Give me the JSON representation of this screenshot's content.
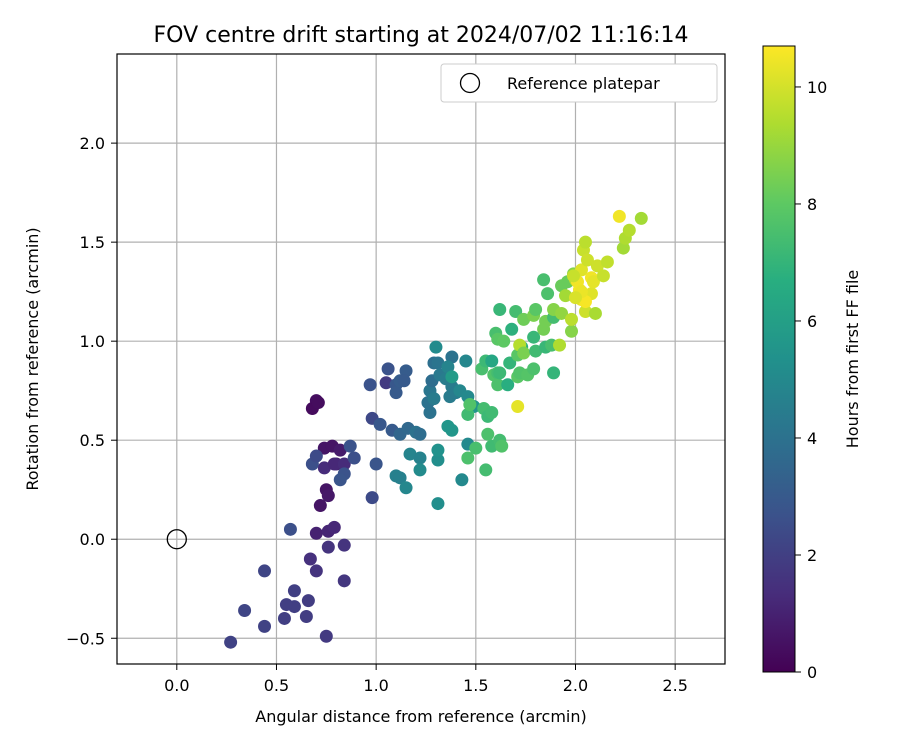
{
  "chart_data": {
    "type": "scatter",
    "title": "FOV centre drift starting at 2024/07/02 11:16:14",
    "xlabel": "Angular distance from reference (arcmin)",
    "ylabel": "Rotation from reference (arcmin)",
    "xlim": [
      -0.3,
      2.75
    ],
    "ylim": [
      -0.63,
      2.45
    ],
    "xticks": [
      0.0,
      0.5,
      1.0,
      1.5,
      2.0,
      2.5
    ],
    "xtick_labels": [
      "0.0",
      "0.5",
      "1.0",
      "1.5",
      "2.0",
      "2.5"
    ],
    "yticks": [
      -0.5,
      0.0,
      0.5,
      1.0,
      1.5,
      2.0
    ],
    "ytick_labels": [
      "−0.5",
      "0.0",
      "0.5",
      "1.0",
      "1.5",
      "2.0"
    ],
    "grid": true,
    "legend": {
      "position": "top-right",
      "entries": [
        "Reference platepar"
      ]
    },
    "reference_point": {
      "x": 0.0,
      "y": 0.0,
      "label": "Reference platepar"
    },
    "colorbar": {
      "label": "Hours from first FF file",
      "colormap": "viridis",
      "range": [
        0,
        10.7
      ],
      "ticks": [
        0,
        2,
        4,
        6,
        8,
        10
      ],
      "tick_labels": [
        "0",
        "2",
        "4",
        "6",
        "8",
        "10"
      ]
    },
    "points": [
      [
        0.7,
        0.7,
        0.4
      ],
      [
        0.68,
        0.66,
        0.3
      ],
      [
        0.71,
        0.69,
        0.35
      ],
      [
        0.74,
        0.46,
        0.6
      ],
      [
        0.78,
        0.47,
        0.6
      ],
      [
        0.72,
        0.17,
        0.6
      ],
      [
        0.75,
        0.25,
        0.6
      ],
      [
        0.76,
        0.22,
        0.7
      ],
      [
        0.7,
        0.03,
        1.0
      ],
      [
        0.76,
        0.04,
        1.1
      ],
      [
        0.79,
        0.06,
        1.2
      ],
      [
        0.8,
        0.38,
        1.0
      ],
      [
        0.82,
        0.45,
        0.8
      ],
      [
        0.74,
        0.36,
        1.3
      ],
      [
        0.79,
        0.38,
        1.2
      ],
      [
        0.84,
        0.38,
        1.3
      ],
      [
        0.67,
        -0.1,
        1.5
      ],
      [
        0.7,
        -0.16,
        1.6
      ],
      [
        0.76,
        -0.04,
        1.6
      ],
      [
        0.84,
        -0.03,
        1.6
      ],
      [
        0.84,
        -0.21,
        1.7
      ],
      [
        0.75,
        -0.49,
        1.8
      ],
      [
        0.66,
        -0.31,
        1.9
      ],
      [
        0.65,
        -0.39,
        1.9
      ],
      [
        0.59,
        -0.26,
        2.0
      ],
      [
        0.59,
        -0.34,
        2.0
      ],
      [
        0.55,
        -0.33,
        2.0
      ],
      [
        0.54,
        -0.4,
        2.0
      ],
      [
        0.44,
        -0.44,
        2.1
      ],
      [
        0.44,
        -0.16,
        2.2
      ],
      [
        0.34,
        -0.36,
        2.2
      ],
      [
        0.27,
        -0.52,
        2.1
      ],
      [
        0.57,
        0.05,
        2.6
      ],
      [
        0.68,
        0.38,
        2.6
      ],
      [
        0.7,
        0.42,
        2.4
      ],
      [
        0.89,
        0.41,
        2.6
      ],
      [
        0.84,
        0.33,
        2.7
      ],
      [
        0.82,
        0.3,
        2.8
      ],
      [
        0.98,
        0.21,
        2.4
      ],
      [
        0.87,
        0.47,
        2.7
      ],
      [
        0.97,
        0.78,
        2.7
      ],
      [
        0.98,
        0.61,
        2.3
      ],
      [
        1.0,
        0.38,
        2.8
      ],
      [
        1.02,
        0.58,
        2.9
      ],
      [
        1.05,
        0.79,
        1.8
      ],
      [
        1.06,
        0.86,
        2.7
      ],
      [
        1.08,
        0.55,
        3.0
      ],
      [
        1.1,
        0.78,
        2.9
      ],
      [
        1.1,
        0.74,
        3.0
      ],
      [
        1.12,
        0.8,
        3.1
      ],
      [
        1.15,
        0.85,
        3.1
      ],
      [
        1.14,
        0.8,
        3.0
      ],
      [
        1.12,
        0.53,
        3.5
      ],
      [
        1.16,
        0.56,
        3.6
      ],
      [
        1.1,
        0.32,
        4.6
      ],
      [
        1.12,
        0.31,
        4.6
      ],
      [
        1.15,
        0.26,
        4.9
      ],
      [
        1.17,
        0.43,
        4.8
      ],
      [
        1.22,
        0.41,
        4.7
      ],
      [
        1.22,
        0.35,
        5.1
      ],
      [
        1.2,
        0.54,
        4.0
      ],
      [
        1.22,
        0.53,
        3.8
      ],
      [
        1.26,
        0.69,
        4.0
      ],
      [
        1.27,
        0.75,
        4.2
      ],
      [
        1.27,
        0.64,
        4.0
      ],
      [
        1.29,
        0.71,
        4.4
      ],
      [
        1.28,
        0.8,
        3.8
      ],
      [
        1.29,
        0.89,
        3.9
      ],
      [
        1.3,
        0.97,
        5.1
      ],
      [
        1.31,
        0.89,
        4.1
      ],
      [
        1.32,
        0.83,
        4.3
      ],
      [
        1.35,
        0.81,
        4.5
      ],
      [
        1.37,
        0.72,
        4.4
      ],
      [
        1.38,
        0.77,
        4.4
      ],
      [
        1.38,
        0.92,
        4.0
      ],
      [
        1.36,
        0.87,
        4.8
      ],
      [
        1.4,
        0.74,
        4.4
      ],
      [
        1.42,
        0.75,
        4.9
      ],
      [
        1.45,
        0.9,
        4.9
      ],
      [
        1.46,
        0.48,
        5.0
      ],
      [
        1.43,
        0.3,
        5.0
      ],
      [
        1.31,
        0.18,
        5.2
      ],
      [
        1.31,
        0.4,
        5.2
      ],
      [
        1.31,
        0.45,
        5.4
      ],
      [
        1.36,
        0.57,
        5.6
      ],
      [
        1.38,
        0.55,
        5.6
      ],
      [
        1.38,
        0.82,
        5.8
      ],
      [
        1.46,
        0.72,
        5.0
      ],
      [
        1.49,
        0.67,
        5.6
      ],
      [
        1.46,
        0.63,
        7.3
      ],
      [
        1.47,
        0.68,
        7.7
      ],
      [
        1.46,
        0.41,
        7.6
      ],
      [
        1.5,
        0.46,
        7.5
      ],
      [
        1.54,
        0.66,
        7.4
      ],
      [
        1.56,
        0.62,
        7.2
      ],
      [
        1.55,
        0.35,
        7.4
      ],
      [
        1.58,
        0.47,
        7.3
      ],
      [
        1.56,
        0.53,
        7.6
      ],
      [
        1.58,
        0.64,
        7.3
      ],
      [
        1.62,
        0.5,
        7.4
      ],
      [
        1.63,
        0.47,
        7.7
      ],
      [
        1.53,
        0.86,
        7.5
      ],
      [
        1.55,
        0.9,
        7.2
      ],
      [
        1.59,
        0.83,
        7.7
      ],
      [
        1.58,
        0.9,
        6.3
      ],
      [
        1.61,
        0.84,
        7.4
      ],
      [
        1.61,
        0.78,
        7.6
      ],
      [
        1.62,
        0.84,
        7.2
      ],
      [
        1.6,
        1.04,
        7.5
      ],
      [
        1.62,
        1.16,
        7.1
      ],
      [
        1.61,
        1.01,
        7.9
      ],
      [
        1.64,
        1.0,
        8.0
      ],
      [
        1.66,
        0.78,
        6.7
      ],
      [
        1.67,
        0.89,
        7.0
      ],
      [
        1.68,
        1.06,
        6.8
      ],
      [
        1.7,
        1.15,
        7.4
      ],
      [
        1.71,
        0.82,
        7.9
      ],
      [
        1.71,
        0.93,
        7.9
      ],
      [
        1.73,
        0.97,
        6.8
      ],
      [
        1.72,
        0.98,
        9.5
      ],
      [
        1.72,
        0.84,
        7.7
      ],
      [
        1.71,
        0.67,
        10.3
      ],
      [
        1.74,
        0.94,
        8.5
      ],
      [
        1.74,
        1.11,
        8.3
      ],
      [
        1.76,
        0.83,
        7.8
      ],
      [
        1.79,
        0.86,
        7.6
      ],
      [
        1.79,
        1.13,
        8.5
      ],
      [
        1.8,
        1.16,
        7.9
      ],
      [
        1.79,
        1.02,
        7.1
      ],
      [
        1.8,
        0.95,
        7.3
      ],
      [
        1.84,
        1.06,
        8.4
      ],
      [
        1.85,
        1.1,
        8.4
      ],
      [
        1.85,
        0.97,
        7.1
      ],
      [
        1.86,
        1.24,
        7.6
      ],
      [
        1.84,
        1.31,
        7.5
      ],
      [
        1.88,
        0.98,
        7.5
      ],
      [
        1.89,
        0.84,
        7.0
      ],
      [
        1.89,
        1.12,
        7.4
      ],
      [
        1.89,
        1.16,
        8.7
      ],
      [
        1.92,
        0.98,
        9.4
      ],
      [
        1.93,
        1.14,
        8.9
      ],
      [
        1.93,
        1.28,
        8.2
      ],
      [
        1.95,
        1.23,
        9.2
      ],
      [
        1.96,
        1.3,
        8.2
      ],
      [
        1.98,
        1.05,
        8.7
      ],
      [
        1.98,
        1.11,
        9.6
      ],
      [
        1.99,
        1.34,
        8.7
      ],
      [
        2.0,
        1.31,
        9.5
      ],
      [
        2.01,
        1.3,
        10.5
      ],
      [
        2.02,
        1.26,
        10.5
      ],
      [
        2.03,
        1.21,
        10.3
      ],
      [
        2.03,
        1.36,
        10.2
      ],
      [
        2.04,
        1.46,
        9.8
      ],
      [
        2.05,
        1.5,
        9.6
      ],
      [
        2.05,
        1.15,
        9.9
      ],
      [
        2.06,
        1.41,
        9.9
      ],
      [
        2.08,
        1.24,
        10.2
      ],
      [
        2.08,
        1.32,
        10.5
      ],
      [
        2.09,
        1.3,
        10.3
      ],
      [
        2.1,
        1.14,
        9.3
      ],
      [
        2.11,
        1.38,
        9.9
      ],
      [
        2.14,
        1.33,
        9.8
      ],
      [
        2.16,
        1.4,
        9.7
      ],
      [
        2.22,
        1.63,
        10.5
      ],
      [
        2.24,
        1.47,
        9.2
      ],
      [
        2.25,
        1.52,
        9.4
      ],
      [
        2.27,
        1.56,
        9.5
      ],
      [
        2.33,
        1.62,
        9.2
      ],
      [
        2.05,
        1.2,
        10.6
      ],
      [
        2.03,
        1.25,
        10.4
      ],
      [
        2.0,
        1.22,
        10.1
      ],
      [
        1.99,
        1.33,
        9.8
      ]
    ]
  }
}
